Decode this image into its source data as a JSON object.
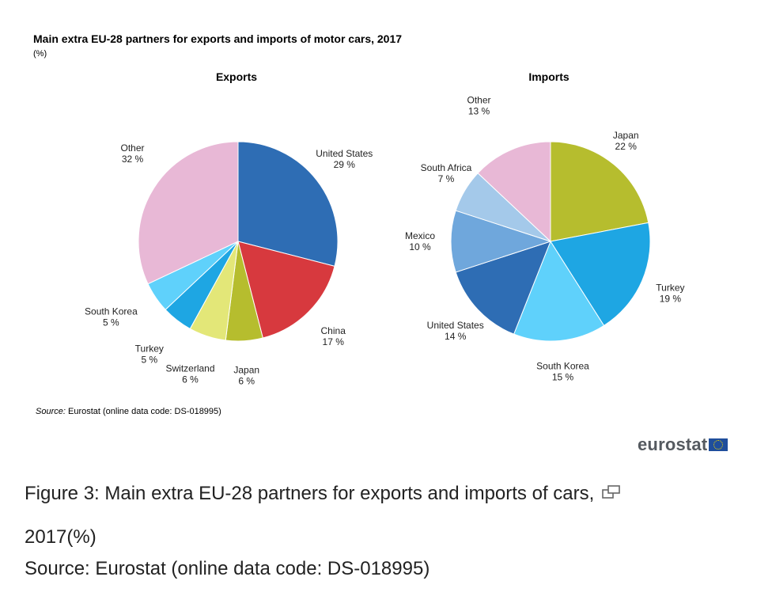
{
  "figure": {
    "title": "Main extra EU-28 partners for exports and imports of motor cars, 2017",
    "unit": "(%)",
    "source_prefix": "Source:",
    "source_text": "Eurostat (online data code: DS-018995)",
    "logo_text": "eurostat"
  },
  "caption": {
    "text": "Figure 3: Main extra EU-28 partners for exports and imports of cars,",
    "text_cont": "2017(%)",
    "source": "Source: Eurostat (online data code: DS-018995)",
    "expand_icon": "expand-icon"
  },
  "chart_data": [
    {
      "type": "pie",
      "title": "Exports",
      "slices": [
        {
          "label": "United States",
          "value": 29,
          "value_label": "29 %",
          "color": "#2e6db4"
        },
        {
          "label": "China",
          "value": 17,
          "value_label": "17 %",
          "color": "#d7393e"
        },
        {
          "label": "Japan",
          "value": 6,
          "value_label": "6 %",
          "color": "#b6bd2e"
        },
        {
          "label": "Switzerland",
          "value": 6,
          "value_label": "6 %",
          "color": "#e3e778"
        },
        {
          "label": "Turkey",
          "value": 5,
          "value_label": "5 %",
          "color": "#1ea6e3"
        },
        {
          "label": "South Korea",
          "value": 5,
          "value_label": "5 %",
          "color": "#5fd1fb"
        },
        {
          "label": "Other",
          "value": 32,
          "value_label": "32 %",
          "color": "#e8b8d6"
        }
      ]
    },
    {
      "type": "pie",
      "title": "Imports",
      "slices": [
        {
          "label": "Japan",
          "value": 22,
          "value_label": "22 %",
          "color": "#b6bd2e"
        },
        {
          "label": "Turkey",
          "value": 19,
          "value_label": "19 %",
          "color": "#1ea6e3"
        },
        {
          "label": "South Korea",
          "value": 15,
          "value_label": "15 %",
          "color": "#5fd1fb"
        },
        {
          "label": "United States",
          "value": 14,
          "value_label": "14 %",
          "color": "#2e6db4"
        },
        {
          "label": "Mexico",
          "value": 10,
          "value_label": "10 %",
          "color": "#6fa7dc"
        },
        {
          "label": "South Africa",
          "value": 7,
          "value_label": "7 %",
          "color": "#a4c9ea"
        },
        {
          "label": "Other",
          "value": 13,
          "value_label": "13 %",
          "color": "#e8b8d6"
        }
      ]
    }
  ]
}
